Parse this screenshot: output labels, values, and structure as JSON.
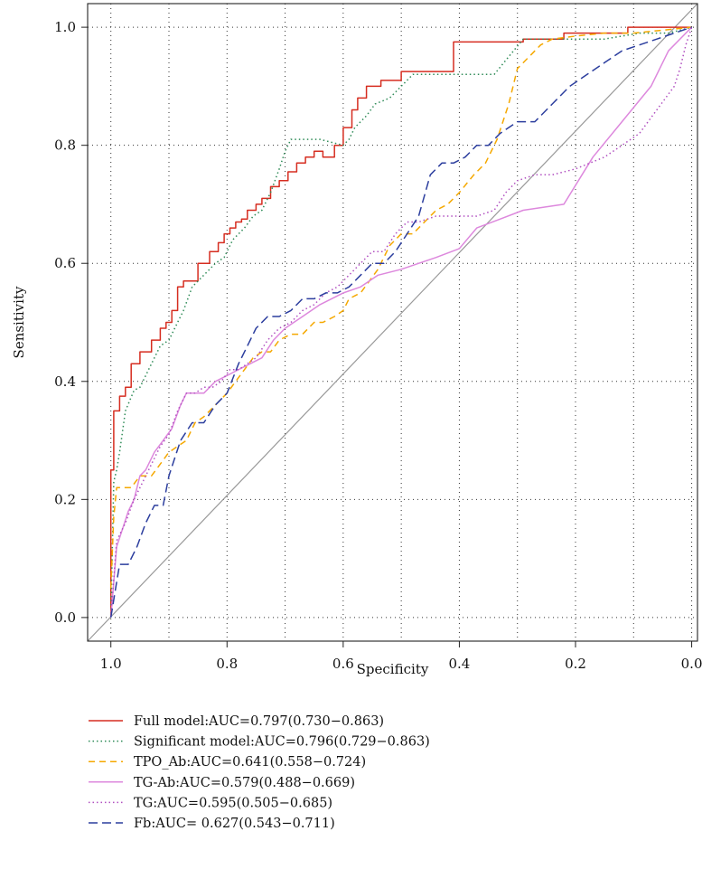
{
  "chart_data": {
    "type": "line",
    "xlabel": "Specificity",
    "ylabel": "Sensitivity",
    "xlim": [
      1.04,
      -0.01
    ],
    "ylim": [
      -0.04,
      1.04
    ],
    "x_reversed": true,
    "x_ticks": [
      "1.0",
      "0.8",
      "0.6",
      "0.4",
      "0.2",
      "0.0"
    ],
    "x_tick_values": [
      1.0,
      0.8,
      0.6,
      0.4,
      0.2,
      0.0
    ],
    "y_ticks": [
      "0.0",
      "0.2",
      "0.4",
      "0.6",
      "0.8",
      "1.0"
    ],
    "y_tick_values": [
      0.0,
      0.2,
      0.4,
      0.6,
      0.8,
      1.0
    ],
    "grid": true,
    "grid_style": "dotted",
    "reference_line": {
      "x": [
        1.04,
        -0.01
      ],
      "y": [
        -0.04,
        1.04
      ],
      "color": "#999999"
    },
    "legend_position": "bottom",
    "series": [
      {
        "name": "Full model:AUC=0.797(0.730−0.863)",
        "color": "#d62d20",
        "dash": "",
        "x": [
          1.0,
          1.0,
          0.995,
          0.995,
          0.985,
          0.985,
          0.975,
          0.975,
          0.965,
          0.965,
          0.95,
          0.95,
          0.93,
          0.93,
          0.915,
          0.915,
          0.905,
          0.905,
          0.895,
          0.895,
          0.885,
          0.885,
          0.875,
          0.875,
          0.85,
          0.85,
          0.83,
          0.83,
          0.815,
          0.815,
          0.805,
          0.805,
          0.795,
          0.795,
          0.785,
          0.785,
          0.775,
          0.775,
          0.765,
          0.765,
          0.75,
          0.75,
          0.74,
          0.74,
          0.725,
          0.725,
          0.71,
          0.71,
          0.695,
          0.695,
          0.68,
          0.68,
          0.665,
          0.665,
          0.65,
          0.65,
          0.635,
          0.635,
          0.615,
          0.615,
          0.6,
          0.6,
          0.585,
          0.585,
          0.575,
          0.575,
          0.56,
          0.56,
          0.535,
          0.535,
          0.52,
          0.52,
          0.5,
          0.5,
          0.41,
          0.41,
          0.29,
          0.29,
          0.22,
          0.22,
          0.2,
          0.2,
          0.11,
          0.11,
          0.04,
          0.04,
          0.0
        ],
        "y": [
          0.0,
          0.25,
          0.25,
          0.35,
          0.35,
          0.375,
          0.375,
          0.39,
          0.39,
          0.43,
          0.43,
          0.45,
          0.45,
          0.47,
          0.47,
          0.49,
          0.49,
          0.5,
          0.5,
          0.52,
          0.52,
          0.56,
          0.56,
          0.57,
          0.57,
          0.6,
          0.6,
          0.62,
          0.62,
          0.635,
          0.635,
          0.65,
          0.65,
          0.66,
          0.66,
          0.67,
          0.67,
          0.675,
          0.675,
          0.69,
          0.69,
          0.7,
          0.7,
          0.71,
          0.71,
          0.73,
          0.73,
          0.74,
          0.74,
          0.755,
          0.755,
          0.77,
          0.77,
          0.78,
          0.78,
          0.79,
          0.79,
          0.78,
          0.78,
          0.8,
          0.8,
          0.83,
          0.83,
          0.86,
          0.86,
          0.88,
          0.88,
          0.9,
          0.9,
          0.91,
          0.91,
          0.91,
          0.91,
          0.925,
          0.925,
          0.975,
          0.975,
          0.98,
          0.98,
          0.99,
          0.99,
          0.99,
          0.99,
          1.0,
          1.0,
          1.0,
          1.0
        ]
      },
      {
        "name": "Significant model:AUC=0.796(0.729−0.863)",
        "color": "#2e8b57",
        "dash": "1.5,3",
        "x": [
          1.0,
          0.995,
          0.99,
          0.985,
          0.975,
          0.96,
          0.95,
          0.93,
          0.915,
          0.9,
          0.89,
          0.875,
          0.86,
          0.84,
          0.82,
          0.805,
          0.79,
          0.77,
          0.755,
          0.74,
          0.725,
          0.71,
          0.7,
          0.69,
          0.675,
          0.66,
          0.64,
          0.6,
          0.59,
          0.58,
          0.56,
          0.545,
          0.52,
          0.5,
          0.48,
          0.45,
          0.4,
          0.34,
          0.29,
          0.25,
          0.2,
          0.15,
          0.09,
          0.04,
          0.0
        ],
        "y": [
          0.0,
          0.23,
          0.25,
          0.28,
          0.35,
          0.385,
          0.39,
          0.43,
          0.46,
          0.47,
          0.49,
          0.52,
          0.56,
          0.58,
          0.6,
          0.61,
          0.64,
          0.66,
          0.68,
          0.69,
          0.72,
          0.76,
          0.79,
          0.81,
          0.81,
          0.81,
          0.81,
          0.8,
          0.81,
          0.83,
          0.85,
          0.87,
          0.88,
          0.9,
          0.92,
          0.92,
          0.92,
          0.92,
          0.98,
          0.98,
          0.98,
          0.98,
          0.99,
          0.99,
          1.0
        ]
      },
      {
        "name": "TPO_Ab:AUC=0.641(0.558−0.724)",
        "color": "#f5a800",
        "dash": "7,5",
        "x": [
          1.0,
          0.995,
          0.99,
          0.98,
          0.965,
          0.95,
          0.93,
          0.915,
          0.9,
          0.885,
          0.87,
          0.855,
          0.84,
          0.82,
          0.8,
          0.785,
          0.77,
          0.755,
          0.74,
          0.725,
          0.71,
          0.69,
          0.67,
          0.65,
          0.635,
          0.615,
          0.6,
          0.59,
          0.57,
          0.555,
          0.54,
          0.52,
          0.5,
          0.48,
          0.46,
          0.44,
          0.42,
          0.4,
          0.375,
          0.355,
          0.335,
          0.315,
          0.3,
          0.28,
          0.26,
          0.24,
          0.2,
          0.15,
          0.1,
          0.05,
          0.0
        ],
        "y": [
          0.05,
          0.17,
          0.22,
          0.22,
          0.22,
          0.24,
          0.24,
          0.26,
          0.28,
          0.29,
          0.3,
          0.33,
          0.34,
          0.36,
          0.38,
          0.4,
          0.42,
          0.44,
          0.45,
          0.45,
          0.47,
          0.48,
          0.48,
          0.5,
          0.5,
          0.51,
          0.52,
          0.54,
          0.55,
          0.57,
          0.59,
          0.63,
          0.65,
          0.65,
          0.67,
          0.69,
          0.7,
          0.72,
          0.75,
          0.77,
          0.81,
          0.87,
          0.93,
          0.95,
          0.97,
          0.98,
          0.985,
          0.99,
          0.99,
          0.995,
          1.0
        ]
      },
      {
        "name": "TG-Ab:AUC=0.579(0.488−0.669)",
        "color": "#dd88dd",
        "dash": "",
        "x": [
          1.0,
          0.99,
          0.98,
          0.97,
          0.96,
          0.95,
          0.94,
          0.925,
          0.91,
          0.895,
          0.88,
          0.87,
          0.86,
          0.85,
          0.84,
          0.82,
          0.8,
          0.78,
          0.76,
          0.74,
          0.72,
          0.7,
          0.67,
          0.64,
          0.6,
          0.57,
          0.54,
          0.5,
          0.44,
          0.4,
          0.37,
          0.33,
          0.29,
          0.22,
          0.17,
          0.12,
          0.07,
          0.04,
          0.0
        ],
        "y": [
          0.0,
          0.12,
          0.15,
          0.18,
          0.2,
          0.24,
          0.25,
          0.28,
          0.3,
          0.32,
          0.36,
          0.38,
          0.38,
          0.38,
          0.38,
          0.4,
          0.41,
          0.42,
          0.43,
          0.44,
          0.47,
          0.49,
          0.51,
          0.53,
          0.55,
          0.56,
          0.58,
          0.59,
          0.61,
          0.625,
          0.66,
          0.675,
          0.69,
          0.7,
          0.78,
          0.84,
          0.9,
          0.96,
          1.0
        ]
      },
      {
        "name": "TG:AUC=0.595(0.505−0.685)",
        "color": "#b04fc0",
        "dash": "1.5,3",
        "x": [
          1.0,
          0.99,
          0.975,
          0.96,
          0.945,
          0.93,
          0.915,
          0.9,
          0.885,
          0.87,
          0.855,
          0.84,
          0.825,
          0.81,
          0.795,
          0.78,
          0.765,
          0.75,
          0.73,
          0.71,
          0.69,
          0.67,
          0.65,
          0.63,
          0.61,
          0.59,
          0.57,
          0.55,
          0.53,
          0.51,
          0.49,
          0.47,
          0.44,
          0.4,
          0.37,
          0.34,
          0.32,
          0.3,
          0.27,
          0.24,
          0.2,
          0.15,
          0.12,
          0.09,
          0.06,
          0.03,
          0.02,
          0.01,
          0.0
        ],
        "y": [
          0.0,
          0.13,
          0.16,
          0.2,
          0.23,
          0.26,
          0.29,
          0.31,
          0.35,
          0.38,
          0.38,
          0.39,
          0.39,
          0.4,
          0.42,
          0.42,
          0.43,
          0.44,
          0.47,
          0.49,
          0.5,
          0.52,
          0.53,
          0.55,
          0.56,
          0.58,
          0.6,
          0.62,
          0.62,
          0.65,
          0.67,
          0.67,
          0.68,
          0.68,
          0.68,
          0.69,
          0.72,
          0.74,
          0.75,
          0.75,
          0.76,
          0.78,
          0.8,
          0.82,
          0.86,
          0.9,
          0.93,
          0.97,
          1.0
        ]
      },
      {
        "name": "Fb:AUC= 0.627(0.543−0.711)",
        "color": "#2c3e9e",
        "dash": "10,5",
        "x": [
          1.0,
          0.99,
          0.985,
          0.97,
          0.955,
          0.94,
          0.925,
          0.91,
          0.9,
          0.89,
          0.88,
          0.86,
          0.84,
          0.82,
          0.8,
          0.78,
          0.765,
          0.75,
          0.73,
          0.71,
          0.69,
          0.67,
          0.65,
          0.63,
          0.61,
          0.59,
          0.57,
          0.55,
          0.53,
          0.51,
          0.49,
          0.47,
          0.45,
          0.43,
          0.41,
          0.39,
          0.37,
          0.35,
          0.33,
          0.3,
          0.27,
          0.24,
          0.21,
          0.18,
          0.15,
          0.12,
          0.09,
          0.06,
          0.03,
          0.0
        ],
        "y": [
          0.0,
          0.06,
          0.09,
          0.09,
          0.12,
          0.16,
          0.19,
          0.19,
          0.24,
          0.27,
          0.3,
          0.33,
          0.33,
          0.36,
          0.38,
          0.43,
          0.46,
          0.49,
          0.51,
          0.51,
          0.52,
          0.54,
          0.54,
          0.55,
          0.55,
          0.56,
          0.58,
          0.6,
          0.6,
          0.62,
          0.65,
          0.68,
          0.75,
          0.77,
          0.77,
          0.78,
          0.8,
          0.8,
          0.82,
          0.84,
          0.84,
          0.87,
          0.9,
          0.92,
          0.94,
          0.96,
          0.97,
          0.98,
          0.99,
          1.0
        ]
      }
    ]
  }
}
